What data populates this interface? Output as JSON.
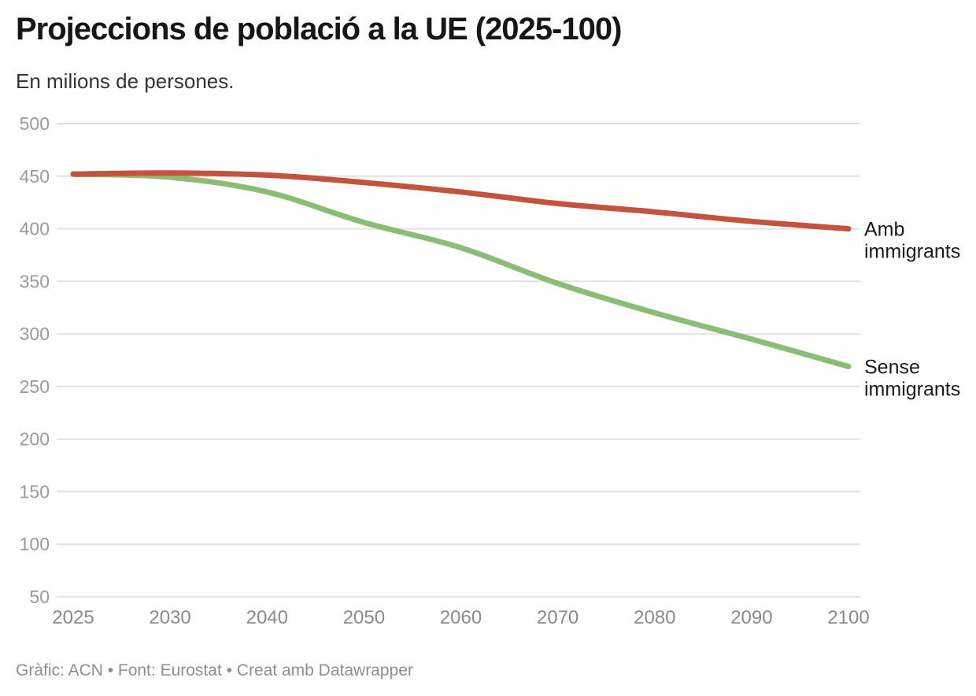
{
  "header": {
    "title": "Projeccions de població a la UE (2025-100)",
    "subtitle": "En milions de persones."
  },
  "footer": {
    "credit": "Gràfic: ACN • Font: Eurostat • Creat amb Datawrapper"
  },
  "chart_data": {
    "type": "line",
    "title": "Projeccions de població a la UE (2025-100)",
    "subtitle": "En milions de persones.",
    "xlabel": "",
    "ylabel": "",
    "categories": [
      2025,
      2030,
      2040,
      2050,
      2060,
      2070,
      2080,
      2090,
      2100
    ],
    "series": [
      {
        "name": "Amb immigrants",
        "label_lines": [
          "Amb",
          "immigrants"
        ],
        "color": "#c5533c",
        "values": [
          452,
          453,
          451,
          444,
          435,
          424,
          416,
          407,
          400
        ]
      },
      {
        "name": "Sense immigrants",
        "label_lines": [
          "Sense",
          "immigrants"
        ],
        "color": "#8cbd77",
        "values": [
          452,
          449,
          435,
          406,
          382,
          348,
          320,
          295,
          269
        ]
      }
    ],
    "ylim": [
      50,
      500
    ],
    "y_ticks": [
      50,
      100,
      150,
      200,
      250,
      300,
      350,
      400,
      450,
      500
    ],
    "grid": true,
    "legend_position": "end-of-line",
    "style": {
      "grid_color": "#e2e2e2",
      "y_tick_color": "#9a9a9a",
      "x_tick_color": "#8a8a8a",
      "series_label_color": "#1a1a1a"
    }
  }
}
